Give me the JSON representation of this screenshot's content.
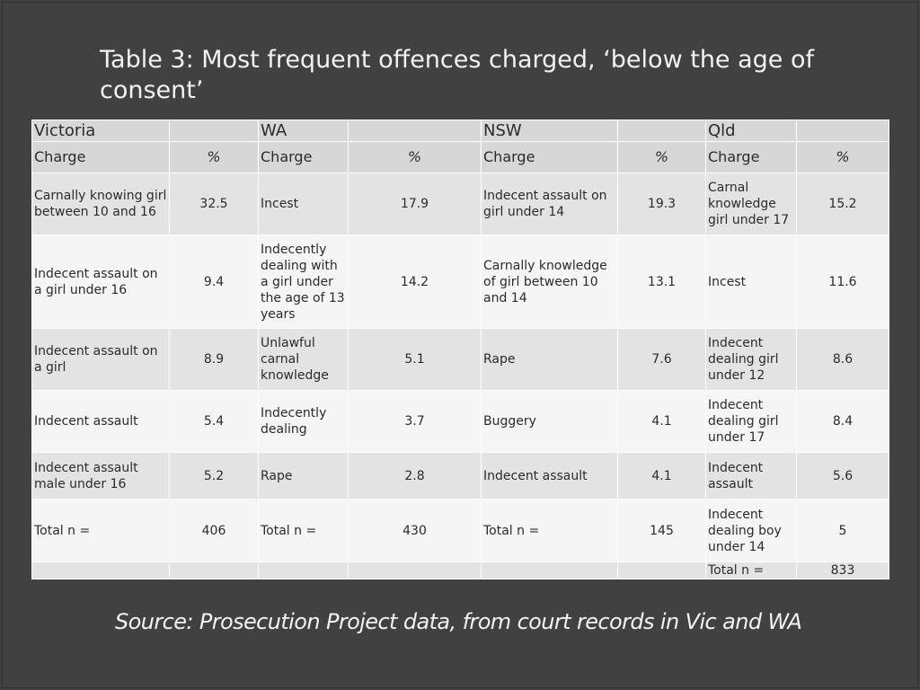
{
  "title": "Table 3: Most frequent offences charged, ‘below the age of consent’",
  "table": {
    "regions": [
      "Victoria",
      "WA",
      "NSW",
      "Qld"
    ],
    "charge_label": "Charge",
    "pct_label": "%",
    "rows": [
      [
        "Carnally knowing girl between 10 and 16",
        "32.5",
        "Incest",
        "17.9",
        "Indecent assault on girl under 14",
        "19.3",
        "Carnal knowledge girl under 17",
        "15.2"
      ],
      [
        "Indecent assault on a girl under 16",
        "9.4",
        "Indecently dealing with a girl under the age of 13 years",
        "14.2",
        "Carnally knowledge of girl between 10 and 14",
        "13.1",
        "Incest",
        "11.6"
      ],
      [
        "Indecent assault on a girl",
        "8.9",
        "Unlawful carnal knowledge",
        "5.1",
        "Rape",
        "7.6",
        "Indecent dealing girl under 12",
        "8.6"
      ],
      [
        "Indecent assault",
        "5.4",
        "Indecently dealing",
        "3.7",
        "Buggery",
        "4.1",
        "Indecent dealing girl under 17",
        "8.4"
      ],
      [
        "Indecent assault male under 16",
        "5.2",
        "Rape",
        "2.8",
        "Indecent assault",
        "4.1",
        "Indecent assault",
        "5.6"
      ],
      [
        "Total n =",
        "406",
        "Total n =",
        "430",
        "Total n =",
        "145",
        "Indecent dealing boy under 14",
        "5"
      ],
      [
        "",
        "",
        "",
        "",
        "",
        "",
        "Total n =",
        "833"
      ]
    ]
  },
  "source": "Source: Prosecution Project data, from court records in Vic and WA"
}
